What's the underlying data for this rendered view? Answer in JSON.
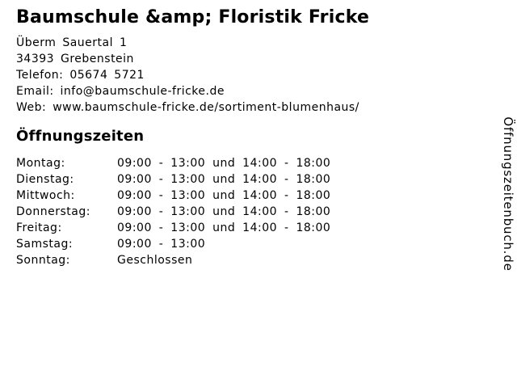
{
  "page": {
    "background": "#ffffff",
    "text_color": "#000000"
  },
  "business": {
    "name": "Baumschule &amp; Floristik Fricke",
    "street": "Überm Sauertal 1",
    "city": "34393 Grebenstein",
    "phone_line": "Telefon: 05674 5721",
    "email_line": "Email: info@baumschule-fricke.de",
    "web_line": "Web: www.baumschule-fricke.de/sortiment-blumenhaus/"
  },
  "hours": {
    "heading": "Öffnungszeiten",
    "rows": [
      {
        "day": "Montag:",
        "time": "09:00 - 13:00 und 14:00 - 18:00"
      },
      {
        "day": "Dienstag:",
        "time": "09:00 - 13:00 und 14:00 - 18:00"
      },
      {
        "day": "Mittwoch:",
        "time": "09:00 - 13:00 und 14:00 - 18:00"
      },
      {
        "day": "Donnerstag:",
        "time": "09:00 - 13:00 und 14:00 - 18:00"
      },
      {
        "day": "Freitag:",
        "time": "09:00 - 13:00 und 14:00 - 18:00"
      },
      {
        "day": "Samstag:",
        "time": "09:00 - 13:00"
      },
      {
        "day": "Sonntag:",
        "time": "Geschlossen"
      }
    ]
  },
  "branding": {
    "site": "Öffnungszeitenbuch.de"
  }
}
